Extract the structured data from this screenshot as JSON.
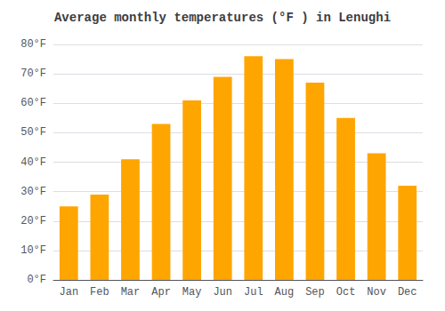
{
  "chart_data": {
    "type": "bar",
    "title": "Average monthly temperatures (°F ) in Lenughi",
    "categories": [
      "Jan",
      "Feb",
      "Mar",
      "Apr",
      "May",
      "Jun",
      "Jul",
      "Aug",
      "Sep",
      "Oct",
      "Nov",
      "Dec"
    ],
    "values": [
      25,
      29,
      41,
      53,
      61,
      69,
      76,
      75,
      67,
      55,
      43,
      32
    ],
    "color": "#FFA500",
    "ylim": [
      0,
      80
    ],
    "yticks": [
      {
        "value": 0,
        "label": "0°F"
      },
      {
        "value": 10,
        "label": "10°F"
      },
      {
        "value": 20,
        "label": "20°F"
      },
      {
        "value": 30,
        "label": "30°F"
      },
      {
        "value": 40,
        "label": "40°F"
      },
      {
        "value": 50,
        "label": "50°F"
      },
      {
        "value": 60,
        "label": "60°F"
      },
      {
        "value": 70,
        "label": "70°F"
      },
      {
        "value": 80,
        "label": "80°F"
      }
    ],
    "grid": true
  }
}
